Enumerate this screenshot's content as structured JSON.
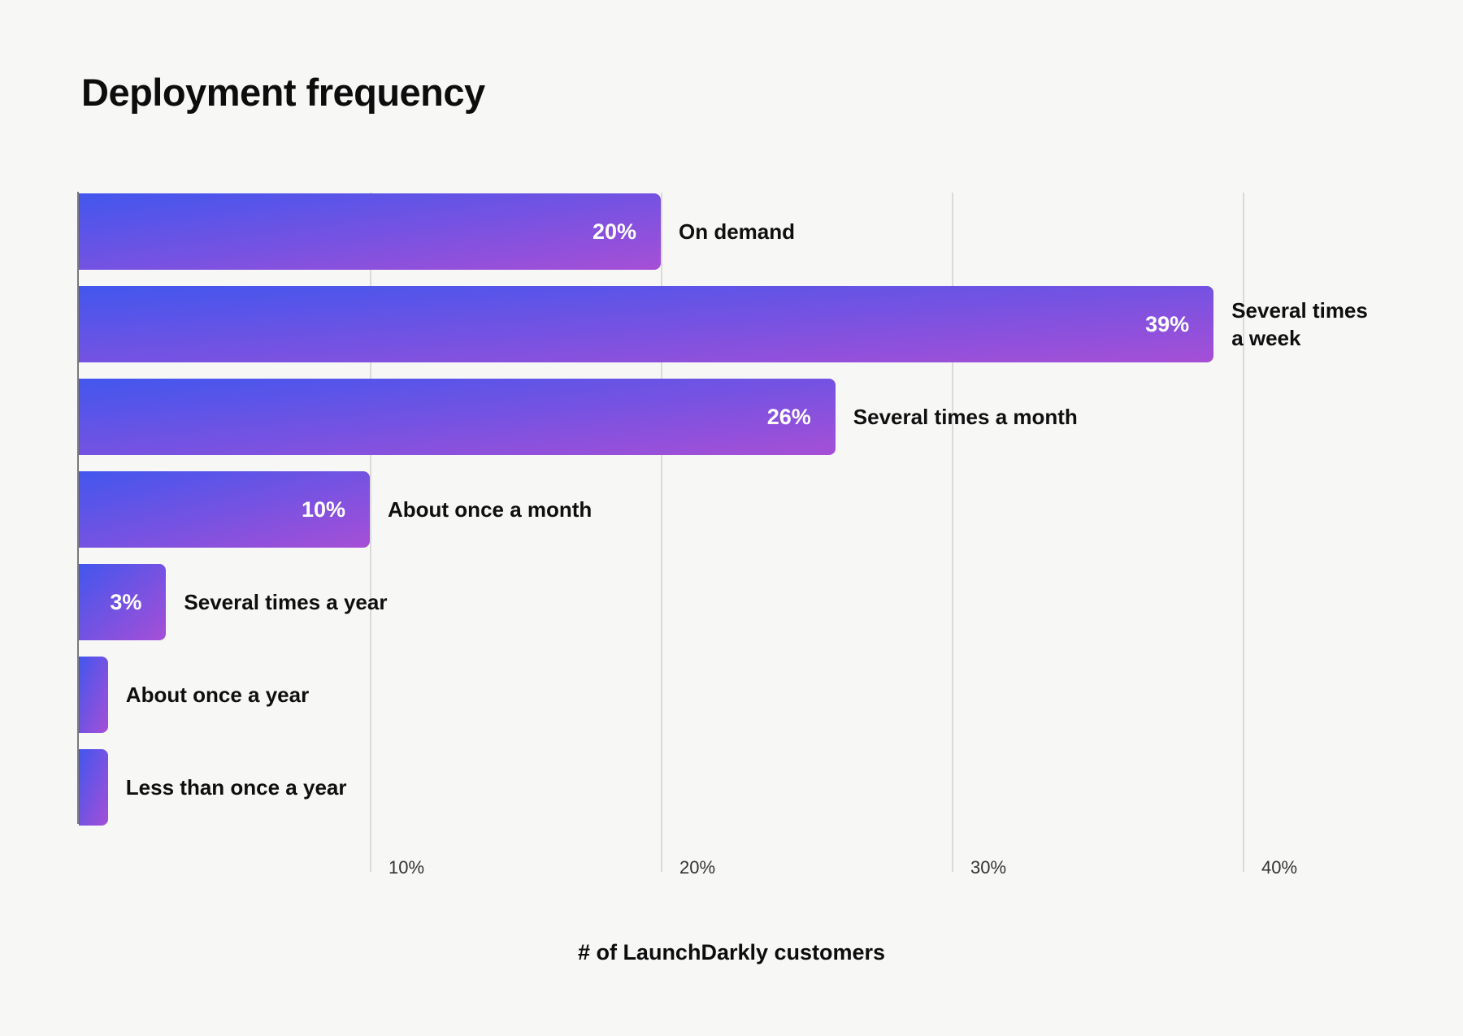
{
  "colors": {
    "background": "#f7f7f6",
    "bar_gradient_from": "#4256ee",
    "bar_gradient_to": "#a64fd6",
    "gridline": "#dadada",
    "axis_line": "#7a7a7a",
    "bar_value_text": "#ffffff",
    "category_text": "#0f0f0f",
    "tick_text": "#333333"
  },
  "chart_data": {
    "type": "bar",
    "orientation": "horizontal",
    "title": "Deployment frequency",
    "xlabel": "# of LaunchDarkly customers",
    "ylabel": "",
    "xlim": [
      0,
      43
    ],
    "grid": "vertical-only",
    "legend": false,
    "categories": [
      "On demand",
      "Several times a week",
      "Several times a month",
      "About once a month",
      "Several times a year",
      "About once a year",
      "Less than once a year"
    ],
    "values": [
      20,
      39,
      26,
      10,
      3,
      1,
      1
    ],
    "value_labels": [
      "20%",
      "39%",
      "26%",
      "10%",
      "3%",
      "",
      ""
    ],
    "wrap_label_indexes": [
      1
    ],
    "x_ticks": [
      {
        "value": 10,
        "label": "10%"
      },
      {
        "value": 20,
        "label": "20%"
      },
      {
        "value": 30,
        "label": "30%"
      },
      {
        "value": 40,
        "label": "40%"
      }
    ]
  },
  "layout_notes": {
    "value_label_position": "inside-right of bar, white",
    "category_label_position": "right of bar end, black"
  }
}
